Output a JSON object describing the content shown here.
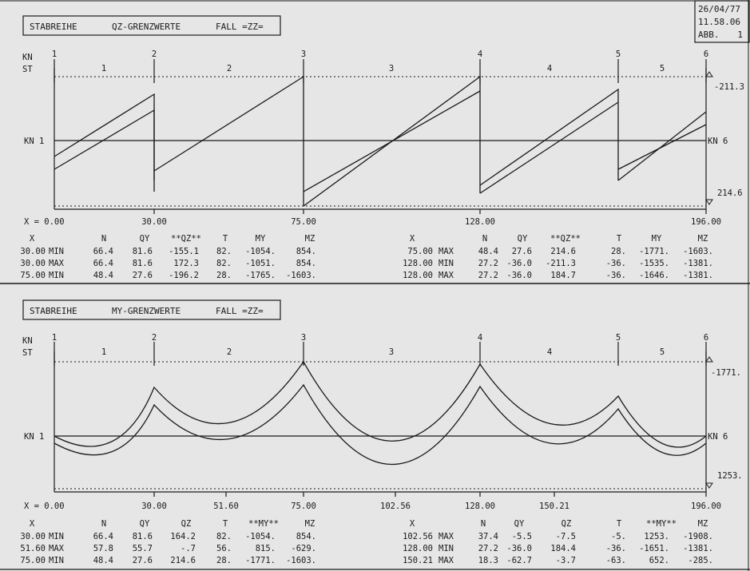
{
  "stamp": {
    "date": "26/04/77",
    "time": "11.58.06",
    "abb": "ABB.",
    "abb_no": "1"
  },
  "panels": [
    {
      "title": "STABREIHE",
      "subtitle": "QZ-GRENZWERTE",
      "fall": "FALL =ZZ=",
      "kn_label": "KN",
      "st_label": "ST",
      "node_numbers": [
        "1",
        "2",
        "3",
        "4",
        "5",
        "6"
      ],
      "span_numbers": [
        "1",
        "2",
        "3",
        "4",
        "5"
      ],
      "left_axis_label": "KN 1",
      "right_axis_label": "KN 6",
      "top_value": "-211.3",
      "bottom_value": "214.6",
      "x_prefix": "X = 0.00",
      "x_ticks": [
        "30.00",
        "75.00",
        "128.00",
        "196.00"
      ],
      "table_left": {
        "headers": [
          "X",
          "",
          "N",
          "QY",
          "**QZ**",
          "T",
          "MY",
          "MZ"
        ],
        "rows": [
          [
            "30.00",
            "MIN",
            "66.4",
            "81.6",
            "-155.1",
            "82.",
            "-1054.",
            "854."
          ],
          [
            "30.00",
            "MAX",
            "66.4",
            "81.6",
            "172.3",
            "82.",
            "-1051.",
            "854."
          ],
          [
            "75.00",
            "MIN",
            "48.4",
            "27.6",
            "-196.2",
            "28.",
            "-1765.",
            "-1603."
          ]
        ]
      },
      "table_right": {
        "headers": [
          "X",
          "",
          "N",
          "QY",
          "**QZ**",
          "T",
          "MY",
          "MZ"
        ],
        "rows": [
          [
            "75.00",
            "MAX",
            "48.4",
            "27.6",
            "214.6",
            "28.",
            "-1771.",
            "-1603."
          ],
          [
            "128.00",
            "MIN",
            "27.2",
            "-36.0",
            "-211.3",
            "-36.",
            "-1535.",
            "-1381."
          ],
          [
            "128.00",
            "MAX",
            "27.2",
            "-36.0",
            "184.7",
            "-36.",
            "-1646.",
            "-1381."
          ]
        ]
      }
    },
    {
      "title": "STABREIHE",
      "subtitle": "MY-GRENZWERTE",
      "fall": "FALL =ZZ=",
      "kn_label": "KN",
      "st_label": "ST",
      "node_numbers": [
        "1",
        "2",
        "3",
        "4",
        "5",
        "6"
      ],
      "span_numbers": [
        "1",
        "2",
        "3",
        "4",
        "5"
      ],
      "left_axis_label": "KN 1",
      "right_axis_label": "KN 6",
      "top_value": "-1771.",
      "bottom_value": "1253.",
      "x_prefix": "X = 0.00",
      "x_ticks": [
        "30.00",
        "51.60",
        "75.00",
        "102.56",
        "128.00",
        "150.21",
        "196.00"
      ],
      "table_left": {
        "headers": [
          "X",
          "",
          "N",
          "QY",
          "QZ",
          "T",
          "**MY**",
          "MZ"
        ],
        "rows": [
          [
            "30.00",
            "MIN",
            "66.4",
            "81.6",
            "164.2",
            "82.",
            "-1054.",
            "854."
          ],
          [
            "51.60",
            "MAX",
            "57.8",
            "55.7",
            "-.7",
            "56.",
            "815.",
            "-629."
          ],
          [
            "75.00",
            "MIN",
            "48.4",
            "27.6",
            "214.6",
            "28.",
            "-1771.",
            "-1603."
          ]
        ]
      },
      "table_right": {
        "headers": [
          "X",
          "",
          "N",
          "QY",
          "QZ",
          "T",
          "**MY**",
          "MZ"
        ],
        "rows": [
          [
            "102.56",
            "MAX",
            "37.4",
            "-5.5",
            "-7.5",
            "-5.",
            "1253.",
            "-1908."
          ],
          [
            "128.00",
            "MIN",
            "27.2",
            "-36.0",
            "184.4",
            "-36.",
            "-1651.",
            "-1381."
          ],
          [
            "150.21",
            "MAX",
            "18.3",
            "-62.7",
            "-3.7",
            "-63.",
            "652.",
            "-285."
          ]
        ]
      }
    }
  ]
}
